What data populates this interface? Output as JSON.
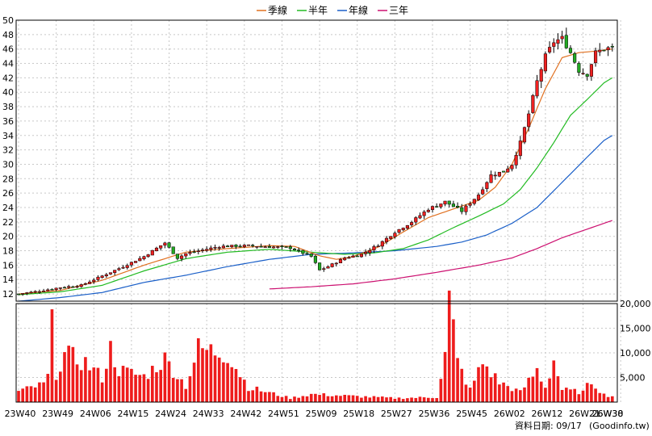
{
  "chart_data": {
    "type": "candlestick",
    "legend": {
      "placement": "top-center",
      "items": [
        {
          "name": "季線",
          "color": "#e07020"
        },
        {
          "name": "半年",
          "color": "#22bb22"
        },
        {
          "name": "年線",
          "color": "#1a5fc8"
        },
        {
          "name": "三年",
          "color": "#cc1070"
        }
      ]
    },
    "price_axis": {
      "ylim": [
        11,
        50
      ],
      "ticks": [
        12,
        14,
        16,
        18,
        20,
        22,
        24,
        26,
        28,
        30,
        32,
        34,
        36,
        38,
        40,
        42,
        44,
        46,
        48,
        50
      ]
    },
    "volume_axis": {
      "ylim": [
        0,
        20000
      ],
      "tick_values": [
        5000,
        10000,
        15000,
        20000
      ],
      "tick_labels": [
        "5,000",
        "10,000",
        "15,000",
        "20,000"
      ]
    },
    "x_axis": {
      "labels": [
        "23W40",
        "23W49",
        "24W06",
        "24W15",
        "24W24",
        "24W33",
        "24W42",
        "24W51",
        "25W09",
        "25W18",
        "25W27",
        "25W36",
        "25W45",
        "26W02",
        "26W12",
        "26W21",
        "26W30",
        "26W38"
      ],
      "label_step": 9
    },
    "grid": true,
    "colors": {
      "up": "#ee2020",
      "down": "#22aa22",
      "wick": "#000000",
      "volume": "#ee1c1c"
    },
    "close_price_keyframes": [
      [
        0,
        12.0
      ],
      [
        5,
        12.4
      ],
      [
        10,
        12.9
      ],
      [
        15,
        13.2
      ],
      [
        20,
        14.5
      ],
      [
        25,
        15.8
      ],
      [
        30,
        17.2
      ],
      [
        35,
        19.1
      ],
      [
        38,
        17.0
      ],
      [
        40,
        17.6
      ],
      [
        48,
        18.6
      ],
      [
        55,
        18.7
      ],
      [
        65,
        18.4
      ],
      [
        70,
        17.2
      ],
      [
        72,
        15.3
      ],
      [
        74,
        15.8
      ],
      [
        78,
        17.0
      ],
      [
        82,
        17.5
      ],
      [
        86,
        18.8
      ],
      [
        90,
        20.6
      ],
      [
        94,
        22.0
      ],
      [
        98,
        23.8
      ],
      [
        102,
        24.8
      ],
      [
        106,
        23.5
      ],
      [
        110,
        25.8
      ],
      [
        113,
        28.5
      ],
      [
        116,
        29.0
      ],
      [
        118,
        30.0
      ],
      [
        120,
        33.0
      ],
      [
        122,
        37.0
      ],
      [
        124,
        41.5
      ],
      [
        126,
        45.0
      ],
      [
        128,
        47.0
      ],
      [
        130,
        47.5
      ],
      [
        132,
        45.5
      ],
      [
        134,
        43.0
      ],
      [
        136,
        42.5
      ],
      [
        138,
        45.5
      ],
      [
        140,
        46.0
      ],
      [
        142,
        46.2
      ]
    ],
    "volume_keyframes": [
      [
        0,
        2200
      ],
      [
        6,
        3600
      ],
      [
        7,
        5200
      ],
      [
        8,
        15200
      ],
      [
        9,
        6000
      ],
      [
        11,
        9500
      ],
      [
        13,
        9000
      ],
      [
        16,
        8000
      ],
      [
        20,
        5000
      ],
      [
        22,
        10800
      ],
      [
        24,
        6500
      ],
      [
        30,
        5200
      ],
      [
        35,
        8700
      ],
      [
        40,
        3300
      ],
      [
        43,
        10800
      ],
      [
        50,
        9800
      ],
      [
        55,
        3000
      ],
      [
        65,
        800
      ],
      [
        70,
        1600
      ],
      [
        80,
        1200
      ],
      [
        90,
        800
      ],
      [
        100,
        1000
      ],
      [
        102,
        9500
      ],
      [
        103,
        20500
      ],
      [
        104,
        14800
      ],
      [
        105,
        8000
      ],
      [
        108,
        2500
      ],
      [
        111,
        8000
      ],
      [
        115,
        4000
      ],
      [
        120,
        2000
      ],
      [
        124,
        6500
      ],
      [
        126,
        3000
      ],
      [
        128,
        8500
      ],
      [
        130,
        2500
      ],
      [
        135,
        2000
      ],
      [
        137,
        4300
      ],
      [
        140,
        1500
      ],
      [
        142,
        1200
      ]
    ],
    "ma_quarter": [
      [
        0,
        12.0
      ],
      [
        10,
        12.5
      ],
      [
        20,
        13.9
      ],
      [
        30,
        16.0
      ],
      [
        40,
        17.8
      ],
      [
        50,
        18.3
      ],
      [
        60,
        18.7
      ],
      [
        66,
        18.6
      ],
      [
        72,
        17.3
      ],
      [
        76,
        16.8
      ],
      [
        80,
        17.2
      ],
      [
        86,
        18.5
      ],
      [
        92,
        20.6
      ],
      [
        98,
        22.6
      ],
      [
        104,
        23.8
      ],
      [
        110,
        25.0
      ],
      [
        114,
        26.8
      ],
      [
        118,
        30.0
      ],
      [
        122,
        35.0
      ],
      [
        126,
        40.5
      ],
      [
        130,
        44.8
      ],
      [
        134,
        45.5
      ],
      [
        138,
        45.7
      ],
      [
        142,
        46.0
      ]
    ],
    "ma_half_year": [
      [
        0,
        11.9
      ],
      [
        10,
        12.3
      ],
      [
        20,
        13.2
      ],
      [
        30,
        15.2
      ],
      [
        40,
        16.9
      ],
      [
        50,
        17.8
      ],
      [
        60,
        18.2
      ],
      [
        70,
        17.8
      ],
      [
        78,
        17.5
      ],
      [
        85,
        17.7
      ],
      [
        92,
        18.3
      ],
      [
        98,
        19.5
      ],
      [
        104,
        21.2
      ],
      [
        110,
        22.8
      ],
      [
        116,
        24.5
      ],
      [
        120,
        26.5
      ],
      [
        124,
        29.5
      ],
      [
        128,
        33.0
      ],
      [
        132,
        36.8
      ],
      [
        136,
        39.0
      ],
      [
        140,
        41.3
      ],
      [
        142,
        42.0
      ]
    ],
    "ma_year": [
      [
        0,
        11.0
      ],
      [
        10,
        11.5
      ],
      [
        20,
        12.2
      ],
      [
        30,
        13.6
      ],
      [
        40,
        14.6
      ],
      [
        50,
        15.8
      ],
      [
        60,
        16.8
      ],
      [
        70,
        17.5
      ],
      [
        80,
        17.7
      ],
      [
        90,
        18.0
      ],
      [
        100,
        18.6
      ],
      [
        106,
        19.2
      ],
      [
        112,
        20.2
      ],
      [
        118,
        21.8
      ],
      [
        124,
        24.0
      ],
      [
        130,
        27.5
      ],
      [
        136,
        31.0
      ],
      [
        140,
        33.3
      ],
      [
        142,
        34.0
      ]
    ],
    "ma_three_year": [
      [
        60,
        12.7
      ],
      [
        70,
        13.0
      ],
      [
        80,
        13.4
      ],
      [
        90,
        14.1
      ],
      [
        100,
        15.0
      ],
      [
        110,
        16.0
      ],
      [
        118,
        17.0
      ],
      [
        124,
        18.3
      ],
      [
        130,
        19.8
      ],
      [
        136,
        21.0
      ],
      [
        142,
        22.2
      ]
    ]
  },
  "footer": {
    "date_label": "資料日期: 09/17",
    "source": "(Goodinfo.tw)"
  }
}
